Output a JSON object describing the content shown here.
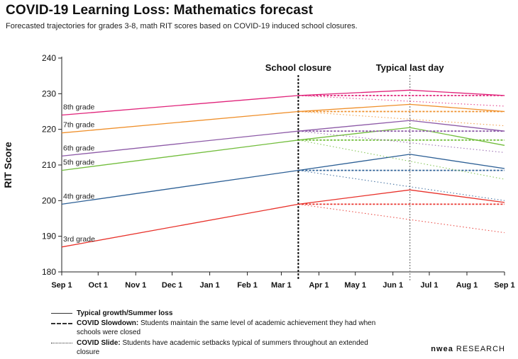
{
  "title": "COVID-19 Learning Loss: Mathematics forecast",
  "subtitle": "Forecasted trajectories for grades 3-8, math RIT scores based on COVID-19 induced school closures.",
  "brand": {
    "name_bold": "nwea",
    "name_rest": "RESEARCH"
  },
  "legend": [
    {
      "style": "solid",
      "key": "Typical growth/Summer loss",
      "text": ""
    },
    {
      "style": "dashed",
      "key": "COVID Slowdown:",
      "text": "Students maintain the same level of academic achievement they had when schools were closed"
    },
    {
      "style": "dotted",
      "key": "COVID Slide:",
      "text": "Students have academic setbacks typical of summers throughout an extended closure"
    }
  ],
  "chart_data": {
    "type": "line",
    "ylabel": "RIT Score",
    "xlabel": "",
    "x_ticks": [
      "Sep 1",
      "Oct 1",
      "Nov 1",
      "Dec 1",
      "Jan 1",
      "Feb 1",
      "Mar 1",
      "Apr 1",
      "May 1",
      "Jun 1",
      "Jul 1",
      "Aug 1",
      "Sep 1"
    ],
    "xlim": [
      "Sep 1",
      "Sep 1"
    ],
    "ylim": [
      180,
      240
    ],
    "y_ticks": [
      180,
      190,
      200,
      210,
      220,
      230,
      240
    ],
    "grid": false,
    "annotations": [
      {
        "label": "School closure",
        "x": "Mar 15",
        "style": "dashed"
      },
      {
        "label": "Typical last day",
        "x": "Jun 15",
        "style": "dotted"
      }
    ],
    "colors": {
      "3rd grade": "#e8312a",
      "4th grade": "#2c5f95",
      "5th grade": "#72bd3c",
      "6th grade": "#8d5aa7",
      "7th grade": "#ef8f2a",
      "8th grade": "#e0237a"
    },
    "series": [
      {
        "name": "3rd grade",
        "typical": [
          [
            "Sep 1",
            187.0
          ],
          [
            "Mar 15",
            199.0
          ],
          [
            "Jun 15",
            203.0
          ],
          [
            "Sep 1",
            199.5
          ]
        ],
        "slowdown": [
          [
            "Mar 15",
            199.0
          ],
          [
            "Sep 1",
            199.0
          ]
        ],
        "slide": [
          [
            "Mar 15",
            199.0
          ],
          [
            "Sep 1",
            191.0
          ]
        ]
      },
      {
        "name": "4th grade",
        "typical": [
          [
            "Sep 1",
            199.0
          ],
          [
            "Mar 15",
            208.5
          ],
          [
            "Jun 15",
            213.0
          ],
          [
            "Sep 1",
            209.0
          ]
        ],
        "slowdown": [
          [
            "Mar 15",
            208.5
          ],
          [
            "Sep 1",
            208.5
          ]
        ],
        "slide": [
          [
            "Mar 15",
            208.5
          ],
          [
            "Sep 1",
            200.0
          ]
        ]
      },
      {
        "name": "5th grade",
        "typical": [
          [
            "Sep 1",
            208.5
          ],
          [
            "Mar 15",
            217.0
          ],
          [
            "Jun 15",
            220.5
          ],
          [
            "Sep 1",
            215.5
          ]
        ],
        "slowdown": [
          [
            "Mar 15",
            217.0
          ],
          [
            "Sep 1",
            217.0
          ]
        ],
        "slide": [
          [
            "Mar 15",
            217.0
          ],
          [
            "Sep 1",
            206.0
          ]
        ]
      },
      {
        "name": "6th grade",
        "typical": [
          [
            "Sep 1",
            212.5
          ],
          [
            "Mar 15",
            219.5
          ],
          [
            "Jun 15",
            222.5
          ],
          [
            "Sep 1",
            219.5
          ]
        ],
        "slowdown": [
          [
            "Mar 15",
            219.5
          ],
          [
            "Sep 1",
            219.5
          ]
        ],
        "slide": [
          [
            "Mar 15",
            219.5
          ],
          [
            "Sep 1",
            213.5
          ]
        ]
      },
      {
        "name": "7th grade",
        "typical": [
          [
            "Sep 1",
            219.0
          ],
          [
            "Mar 15",
            225.0
          ],
          [
            "Jun 15",
            227.0
          ],
          [
            "Sep 1",
            225.0
          ]
        ],
        "slowdown": [
          [
            "Mar 15",
            225.0
          ],
          [
            "Sep 1",
            225.0
          ]
        ],
        "slide": [
          [
            "Mar 15",
            225.0
          ],
          [
            "Sep 1",
            221.0
          ]
        ]
      },
      {
        "name": "8th grade",
        "typical": [
          [
            "Sep 1",
            224.0
          ],
          [
            "Mar 15",
            229.5
          ],
          [
            "Jun 15",
            231.0
          ],
          [
            "Sep 1",
            229.5
          ]
        ],
        "slowdown": [
          [
            "Mar 15",
            229.5
          ],
          [
            "Sep 1",
            229.5
          ]
        ],
        "slide": [
          [
            "Mar 15",
            229.5
          ],
          [
            "Sep 1",
            226.5
          ]
        ]
      }
    ]
  }
}
